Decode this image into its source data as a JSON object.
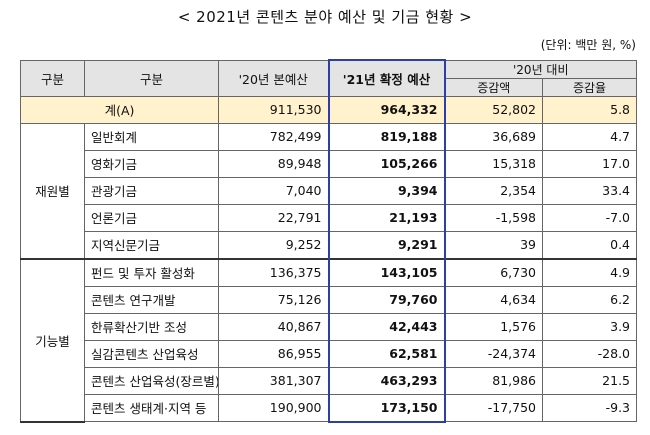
{
  "title": "< 2021년 콘텐츠 분야 예산 및 기금 현황 >",
  "unit": "(단위: 백만 원, %)",
  "headers": {
    "category": "구분",
    "subcategory": "구분",
    "budget_2020": "'20년 본예산",
    "budget_2021": "'21년 확정 예산",
    "vs_2020": "'20년 대비",
    "change_amount": "증감액",
    "change_rate": "증감율"
  },
  "total": {
    "label": "계(A)",
    "b2020": "911,530",
    "b2021": "964,332",
    "diff": "52,802",
    "rate": "5.8"
  },
  "groups": [
    {
      "label": "재원별",
      "rows": [
        {
          "label": "일반회계",
          "b2020": "782,499",
          "b2021": "819,188",
          "diff": "36,689",
          "rate": "4.7"
        },
        {
          "label": "영화기금",
          "b2020": "89,948",
          "b2021": "105,266",
          "diff": "15,318",
          "rate": "17.0"
        },
        {
          "label": "관광기금",
          "b2020": "7,040",
          "b2021": "9,394",
          "diff": "2,354",
          "rate": "33.4"
        },
        {
          "label": "언론기금",
          "b2020": "22,791",
          "b2021": "21,193",
          "diff": "-1,598",
          "rate": "-7.0"
        },
        {
          "label": "지역신문기금",
          "b2020": "9,252",
          "b2021": "9,291",
          "diff": "39",
          "rate": "0.4"
        }
      ]
    },
    {
      "label": "기능별",
      "rows": [
        {
          "label": "펀드 및 투자 활성화",
          "b2020": "136,375",
          "b2021": "143,105",
          "diff": "6,730",
          "rate": "4.9"
        },
        {
          "label": "콘텐츠 연구개발",
          "b2020": "75,126",
          "b2021": "79,760",
          "diff": "4,634",
          "rate": "6.2"
        },
        {
          "label": "한류확산기반 조성",
          "b2020": "40,867",
          "b2021": "42,443",
          "diff": "1,576",
          "rate": "3.9"
        },
        {
          "label": "실감콘텐츠 산업육성",
          "b2020": "86,955",
          "b2021": "62,581",
          "diff": "-24,374",
          "rate": "-28.0"
        },
        {
          "label": "콘텐츠 산업육성(장르별)",
          "b2020": "381,307",
          "b2021": "463,293",
          "diff": "81,986",
          "rate": "21.5"
        },
        {
          "label": "콘텐츠 생태계·지역 등",
          "b2020": "190,900",
          "b2021": "173,150",
          "diff": "-17,750",
          "rate": "-9.3"
        }
      ]
    }
  ]
}
